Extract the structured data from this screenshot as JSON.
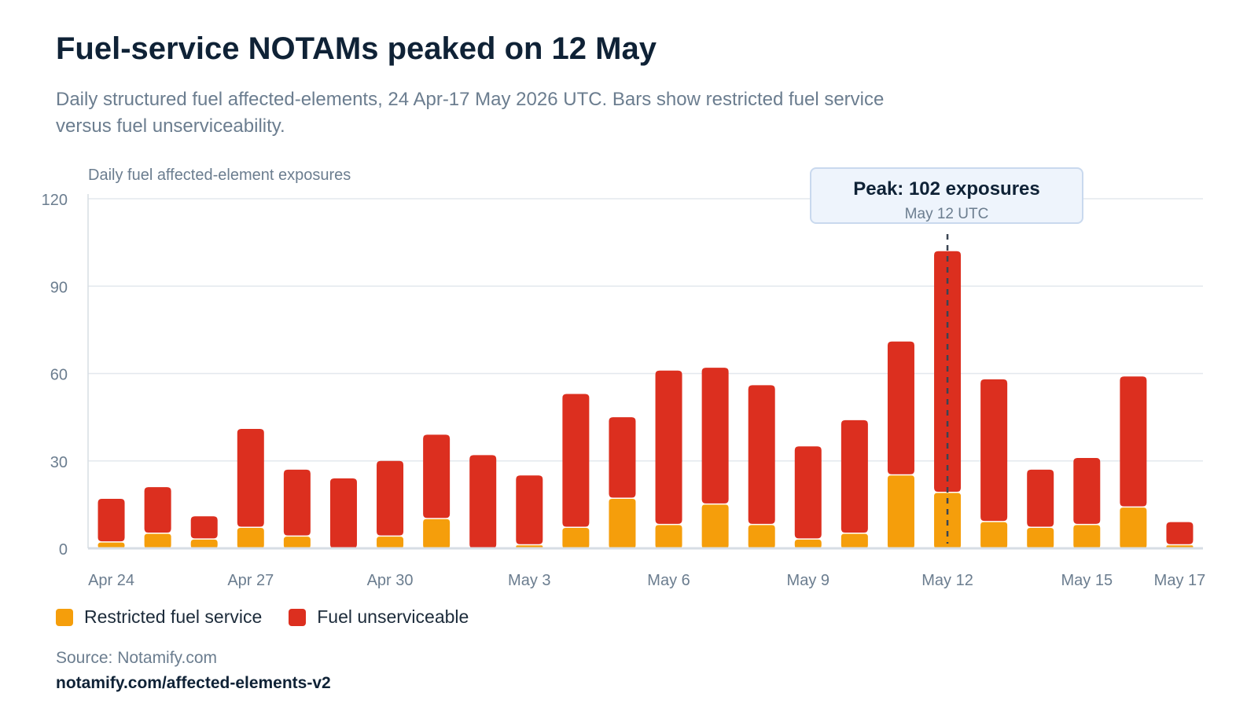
{
  "header": {
    "title": "Fuel-service NOTAMs peaked on 12 May",
    "subtitle": "Daily structured fuel affected-elements, 24 Apr-17 May 2026 UTC. Bars show restricted fuel service versus fuel unserviceability."
  },
  "annotation": {
    "title": "Peak: 102 exposures",
    "subtitle": "May 12 UTC"
  },
  "footer": {
    "source": "Source: Notamify.com",
    "url": "notamify.com/affected-elements-v2"
  },
  "chart_data": {
    "type": "bar",
    "stacked": true,
    "ylabel": "Daily fuel affected-element exposures",
    "xlabel": "",
    "ylim": [
      0,
      120
    ],
    "yticks": [
      0,
      30,
      60,
      90,
      120
    ],
    "grid": true,
    "legend_position": "bottom-left",
    "categories": [
      "Apr 24",
      "Apr 25",
      "Apr 26",
      "Apr 27",
      "Apr 28",
      "Apr 29",
      "Apr 30",
      "May 1",
      "May 2",
      "May 3",
      "May 4",
      "May 5",
      "May 6",
      "May 7",
      "May 8",
      "May 9",
      "May 10",
      "May 11",
      "May 12",
      "May 13",
      "May 14",
      "May 15",
      "May 16",
      "May 17"
    ],
    "tick_labels": [
      "Apr 24",
      "Apr 27",
      "Apr 30",
      "May 3",
      "May 6",
      "May 9",
      "May 12",
      "May 15",
      "May 17"
    ],
    "series": [
      {
        "name": "Restricted fuel service",
        "color": "#f59e0b",
        "values": [
          2,
          5,
          3,
          7,
          4,
          0,
          4,
          10,
          0,
          1,
          7,
          17,
          8,
          15,
          8,
          3,
          5,
          25,
          19,
          9,
          7,
          8,
          14,
          1
        ]
      },
      {
        "name": "Fuel unserviceable",
        "color": "#dc2f1f",
        "values": [
          15,
          16,
          8,
          34,
          23,
          24,
          26,
          29,
          32,
          24,
          46,
          28,
          53,
          47,
          48,
          32,
          39,
          46,
          83,
          49,
          20,
          23,
          45,
          8
        ]
      }
    ],
    "peak": {
      "category": "May 12",
      "value": 102
    }
  }
}
